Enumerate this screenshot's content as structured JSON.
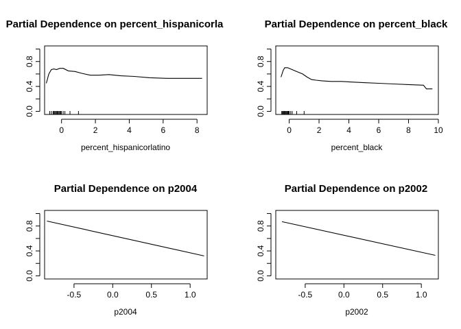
{
  "chart_data": [
    {
      "type": "line",
      "title": "Partial Dependence on percent_hispanicorla",
      "xlabel": "percent_hispanicorlatino",
      "ylabel": "",
      "xlim": [
        -1.0,
        8.6
      ],
      "ylim": [
        -0.05,
        1.05
      ],
      "xticks": [
        0,
        2,
        4,
        6,
        8
      ],
      "xtick_labels": [
        "0",
        "2",
        "4",
        "6",
        "8"
      ],
      "yticks": [
        0.0,
        0.4,
        0.8
      ],
      "ytick_labels": [
        "0.0",
        "0.4",
        "0.8"
      ],
      "x": [
        -0.9,
        -0.75,
        -0.6,
        -0.45,
        -0.3,
        -0.1,
        0.1,
        0.4,
        0.8,
        1.2,
        1.7,
        2.2,
        2.8,
        3.5,
        4.3,
        5.2,
        6.2,
        7.2,
        8.3
      ],
      "y": [
        0.45,
        0.6,
        0.67,
        0.68,
        0.67,
        0.69,
        0.69,
        0.65,
        0.64,
        0.61,
        0.58,
        0.58,
        0.59,
        0.57,
        0.56,
        0.54,
        0.53,
        0.53,
        0.53
      ],
      "rug": [
        -0.7,
        -0.6,
        -0.5,
        -0.45,
        -0.4,
        -0.35,
        -0.3,
        -0.25,
        -0.2,
        -0.15,
        -0.1,
        -0.05,
        0.0,
        0.1,
        0.2,
        0.5,
        1.0
      ]
    },
    {
      "type": "line",
      "title": "Partial Dependence on percent_black",
      "xlabel": "percent_black",
      "ylabel": "",
      "xlim": [
        -0.9,
        10.0
      ],
      "ylim": [
        -0.05,
        1.05
      ],
      "xticks": [
        0,
        2,
        4,
        6,
        8,
        10
      ],
      "xtick_labels": [
        "0",
        "2",
        "4",
        "6",
        "8",
        "10"
      ],
      "yticks": [
        0.0,
        0.4,
        0.8
      ],
      "ytick_labels": [
        "0.0",
        "0.4",
        "0.8"
      ],
      "x": [
        -0.55,
        -0.4,
        -0.3,
        -0.1,
        0.1,
        0.3,
        0.6,
        0.9,
        1.2,
        1.5,
        1.8,
        2.2,
        2.8,
        3.5,
        4.2,
        5.0,
        6.0,
        7.0,
        8.0,
        9.0,
        9.2,
        9.6
      ],
      "y": [
        0.55,
        0.66,
        0.7,
        0.7,
        0.68,
        0.66,
        0.63,
        0.6,
        0.55,
        0.51,
        0.5,
        0.49,
        0.48,
        0.48,
        0.47,
        0.46,
        0.45,
        0.44,
        0.43,
        0.42,
        0.36,
        0.36
      ],
      "rug": [
        -0.5,
        -0.45,
        -0.4,
        -0.35,
        -0.3,
        -0.25,
        -0.2,
        -0.15,
        -0.1,
        -0.05,
        0.0,
        0.1,
        0.2,
        0.5,
        1.0
      ]
    },
    {
      "type": "line",
      "title": "Partial Dependence on p2004",
      "xlabel": "p2004",
      "ylabel": "",
      "xlim": [
        -0.88,
        1.22
      ],
      "ylim": [
        -0.05,
        1.05
      ],
      "xticks": [
        -0.5,
        0.0,
        0.5,
        1.0
      ],
      "xtick_labels": [
        "-0.5",
        "0.0",
        "0.5",
        "1.0"
      ],
      "yticks": [
        0.0,
        0.4,
        0.8
      ],
      "ytick_labels": [
        "0.0",
        "0.4",
        "0.8"
      ],
      "x": [
        -0.85,
        1.18
      ],
      "y": [
        0.88,
        0.32
      ],
      "rug": []
    },
    {
      "type": "line",
      "title": "Partial Dependence on p2002",
      "xlabel": "p2002",
      "ylabel": "",
      "xlim": [
        -0.88,
        1.22
      ],
      "ylim": [
        -0.05,
        1.05
      ],
      "xticks": [
        -0.5,
        0.0,
        0.5,
        1.0
      ],
      "xtick_labels": [
        "-0.5",
        "0.0",
        "0.5",
        "1.0"
      ],
      "yticks": [
        0.0,
        0.4,
        0.8
      ],
      "ytick_labels": [
        "0.0",
        "0.4",
        "0.8"
      ],
      "x": [
        -0.8,
        1.18
      ],
      "y": [
        0.87,
        0.33
      ],
      "rug": []
    }
  ]
}
